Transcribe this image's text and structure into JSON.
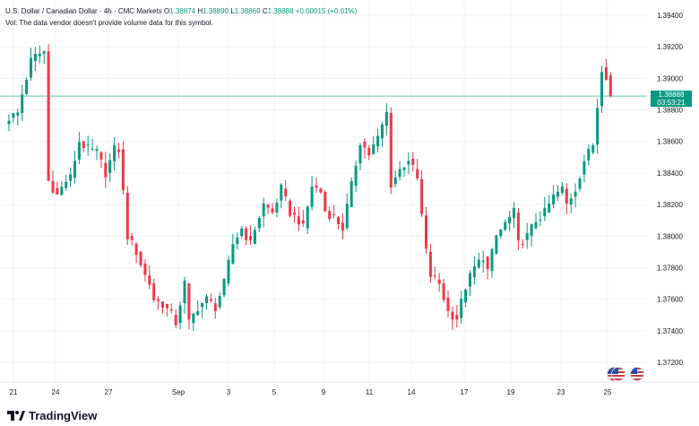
{
  "header": {
    "symbol_line": "U.S. Dollar / Canadian Dollar · 4h · CMC Markets",
    "ohlc": [
      {
        "key": "O",
        "value": "1.38874"
      },
      {
        "key": "H",
        "value": "1.38890"
      },
      {
        "key": "L",
        "value": "1.38869"
      },
      {
        "key": "C",
        "value": "1.38888"
      }
    ],
    "change": "+0.00015 (+0.01%)",
    "vol_note": "Vol: The data vendor doesn't provide volume data for this symbol."
  },
  "price_tag": {
    "price": "1.38888",
    "countdown": "03:53:21"
  },
  "branding": {
    "logo_text": "TradingView"
  },
  "colors": {
    "up": "#089981",
    "down": "#f23645",
    "grid": "#f0f3fa",
    "last_line": "#089981"
  },
  "chart_data": {
    "type": "candlestick",
    "y_ticks": [
      "1.39400",
      "1.39200",
      "1.39000",
      "1.38800",
      "1.38600",
      "1.38400",
      "1.38200",
      "1.38000",
      "1.37800",
      "1.37600",
      "1.37400",
      "1.37200"
    ],
    "ylim": [
      1.371,
      1.395
    ],
    "x_ticks": [
      "21",
      "24",
      "27",
      "Sep",
      "3",
      "5",
      "9",
      "11",
      "14",
      "17",
      "19",
      "23",
      "25"
    ],
    "last_price": 1.38888,
    "path": [
      [
        0,
        1.3875
      ],
      [
        2,
        1.3878
      ],
      [
        3,
        1.389
      ],
      [
        5,
        1.3911
      ],
      [
        6,
        1.3914
      ],
      [
        8,
        1.3917
      ],
      [
        9,
        1.3835
      ],
      [
        11,
        1.3826
      ],
      [
        13,
        1.3835
      ],
      [
        14,
        1.3837
      ],
      [
        16,
        1.386
      ],
      [
        18,
        1.3855
      ],
      [
        20,
        1.3853
      ],
      [
        22,
        1.384
      ],
      [
        24,
        1.3855
      ],
      [
        25,
        1.3855
      ],
      [
        27,
        1.38
      ],
      [
        29,
        1.379
      ],
      [
        31,
        1.3775
      ],
      [
        32,
        1.377
      ],
      [
        33,
        1.376
      ],
      [
        35,
        1.3757
      ],
      [
        37,
        1.375
      ],
      [
        38,
        1.3745
      ],
      [
        40,
        1.377
      ],
      [
        41,
        1.3745
      ],
      [
        43,
        1.3755
      ],
      [
        45,
        1.376
      ],
      [
        47,
        1.3755
      ],
      [
        49,
        1.377
      ],
      [
        51,
        1.3795
      ],
      [
        53,
        1.3805
      ],
      [
        55,
        1.3795
      ],
      [
        56,
        1.3805
      ],
      [
        58,
        1.382
      ],
      [
        60,
        1.3815
      ],
      [
        62,
        1.383
      ],
      [
        64,
        1.3815
      ],
      [
        66,
        1.381
      ],
      [
        67,
        1.3805
      ],
      [
        69,
        1.3832
      ],
      [
        71,
        1.3828
      ],
      [
        72,
        1.3816
      ],
      [
        74,
        1.3812
      ],
      [
        76,
        1.3805
      ],
      [
        78,
        1.3832
      ],
      [
        80,
        1.386
      ],
      [
        82,
        1.3852
      ],
      [
        84,
        1.3862
      ],
      [
        86,
        1.3878
      ],
      [
        87,
        1.3833
      ],
      [
        89,
        1.3842
      ],
      [
        91,
        1.3849
      ],
      [
        93,
        1.3836
      ],
      [
        95,
        1.379
      ],
      [
        96,
        1.3775
      ],
      [
        98,
        1.377
      ],
      [
        100,
        1.3752
      ],
      [
        102,
        1.3748
      ],
      [
        104,
        1.3768
      ],
      [
        106,
        1.378
      ],
      [
        108,
        1.3787
      ],
      [
        109,
        1.3778
      ],
      [
        111,
        1.38
      ],
      [
        113,
        1.3808
      ],
      [
        115,
        1.3815
      ],
      [
        116,
        1.3795
      ],
      [
        118,
        1.38
      ],
      [
        120,
        1.381
      ],
      [
        122,
        1.3815
      ],
      [
        124,
        1.3825
      ],
      [
        126,
        1.383
      ],
      [
        127,
        1.382
      ],
      [
        129,
        1.383
      ],
      [
        131,
        1.3848
      ],
      [
        133,
        1.3858
      ],
      [
        135,
        1.3907
      ],
      [
        136,
        1.3902
      ],
      [
        137,
        1.3889
      ]
    ]
  }
}
